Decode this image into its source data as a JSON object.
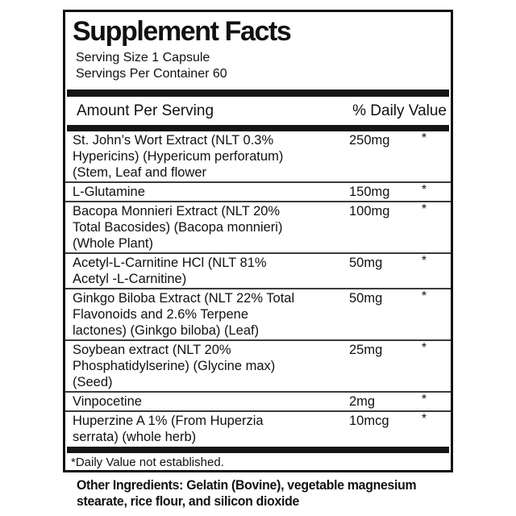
{
  "label": {
    "title": "Supplement Facts",
    "serving_size": "Serving Size 1 Capsule",
    "servings_per_container": "Servings Per Container 60",
    "columns": {
      "amount_header": "Amount Per Serving",
      "dv_header": "% Daily Value"
    },
    "rows": [
      {
        "name_lines": [
          "St. John’s Wort Extract (NLT 0.3%",
          "Hypericins) (Hypericum perforatum)",
          "(Stem, Leaf and flower"
        ],
        "amount": "250mg",
        "daily_value": "*"
      },
      {
        "name_lines": [
          "L-Glutamine"
        ],
        "amount": "150mg",
        "daily_value": "*"
      },
      {
        "name_lines": [
          "Bacopa Monnieri Extract (NLT 20%",
          "Total Bacosides) (Bacopa monnieri)",
          "(Whole Plant)"
        ],
        "amount": "100mg",
        "daily_value": "*"
      },
      {
        "name_lines": [
          "Acetyl-L-Carnitine HCl (NLT 81%",
          "Acetyl -L-Carnitine)"
        ],
        "amount": "50mg",
        "daily_value": "*"
      },
      {
        "name_lines": [
          "Ginkgo Biloba Extract (NLT 22% Total",
          "Flavonoids and 2.6% Terpene",
          "lactones) (Ginkgo biloba) (Leaf)"
        ],
        "amount": "50mg",
        "daily_value": "*"
      },
      {
        "name_lines": [
          "Soybean extract (NLT 20%",
          "Phosphatidylserine) (Glycine max)",
          "(Seed)"
        ],
        "amount": "25mg",
        "daily_value": "*"
      },
      {
        "name_lines": [
          "Vinpocetine"
        ],
        "amount": "2mg",
        "daily_value": "*"
      },
      {
        "name_lines": [
          "Huperzine A 1% (From Huperzia",
          "serrata) (whole herb)"
        ],
        "amount": "10mcg",
        "daily_value": "*"
      }
    ],
    "footnote": "*Daily Value not established."
  },
  "other_ingredients_lines": [
    "Other Ingredients: Gelatin (Bovine), vegetable magnesium",
    "stearate, rice flour, and silicon dioxide"
  ],
  "colors": {
    "ink": "#111111",
    "background": "#ffffff"
  }
}
